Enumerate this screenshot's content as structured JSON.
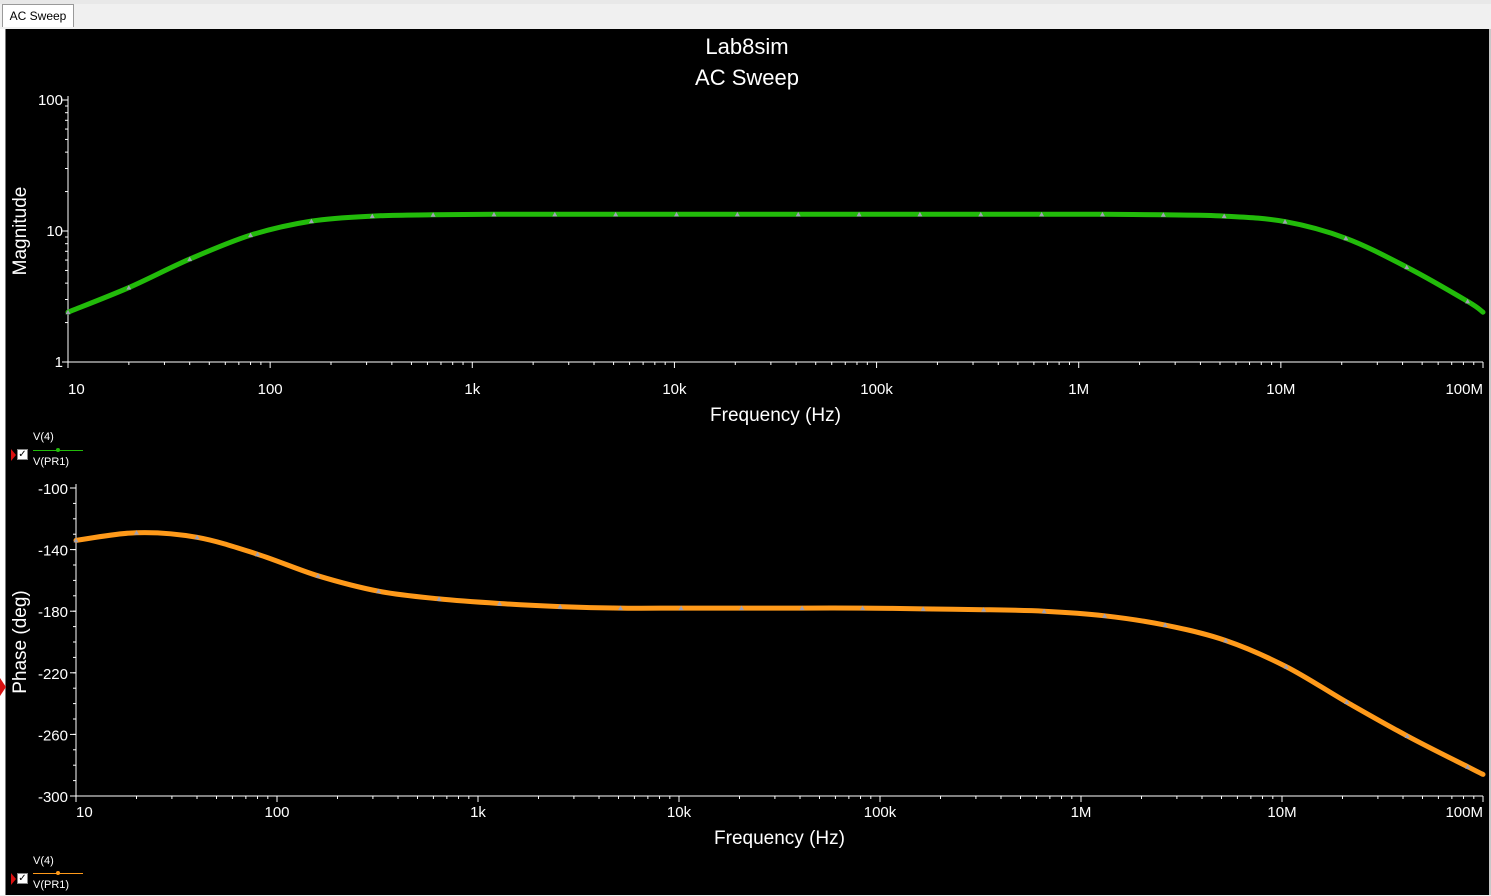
{
  "tab": {
    "label": "AC Sweep"
  },
  "colors": {
    "magnitude": "#22bb0a",
    "phase": "#ff9a1a",
    "background": "#000000",
    "text": "#ffffff",
    "marker": "#a0a0b4"
  },
  "legend": {
    "magnitude": {
      "label_top": "V(4)",
      "label_bottom": "V(PR1)",
      "checked": "✓"
    },
    "phase": {
      "label_top": "V(4)",
      "label_bottom": "V(PR1)",
      "checked": "✓"
    }
  },
  "chart_data": [
    {
      "type": "line",
      "title": "Lab8sim",
      "subtitle": "AC Sweep",
      "xlabel": "Frequency (Hz)",
      "ylabel": "Magnitude",
      "xscale": "log",
      "yscale": "log",
      "xlim": [
        10,
        100000000
      ],
      "ylim": [
        1,
        100
      ],
      "x_ticks": [
        "10",
        "100",
        "1k",
        "10k",
        "100k",
        "1M",
        "10M",
        "100M"
      ],
      "y_ticks": [
        "1",
        "10",
        "100"
      ],
      "series": [
        {
          "name": "V(4)/V(PR1)",
          "x": [
            10,
            20,
            40,
            80,
            160,
            320,
            640,
            1280,
            2560,
            5120,
            10240,
            20480,
            40960,
            81920,
            163840,
            327680,
            655360,
            1310720,
            2621440,
            5242880,
            10485760,
            20971520,
            41943040,
            83886080,
            100000000
          ],
          "y": [
            2.4,
            3.7,
            6.1,
            9.3,
            11.9,
            13.0,
            13.3,
            13.4,
            13.4,
            13.4,
            13.4,
            13.4,
            13.4,
            13.4,
            13.4,
            13.4,
            13.4,
            13.4,
            13.3,
            13.0,
            11.8,
            8.8,
            5.3,
            2.9,
            2.4
          ]
        }
      ]
    },
    {
      "type": "line",
      "xlabel": "Frequency (Hz)",
      "ylabel": "Phase (deg)",
      "xscale": "log",
      "xlim": [
        10,
        100000000
      ],
      "ylim": [
        -300,
        -100
      ],
      "x_ticks": [
        "10",
        "100",
        "1k",
        "10k",
        "100k",
        "1M",
        "10M",
        "100M"
      ],
      "y_ticks": [
        "-100",
        "-140",
        "-180",
        "-220",
        "-260",
        "-300"
      ],
      "series": [
        {
          "name": "V(4)/V(PR1)",
          "x": [
            10,
            20,
            40,
            80,
            160,
            320,
            640,
            1280,
            2560,
            5120,
            10240,
            20480,
            40960,
            81920,
            163840,
            327680,
            655360,
            1310720,
            2621440,
            5242880,
            10485760,
            20971520,
            41943040,
            83886080,
            100000000
          ],
          "y": [
            -134,
            -129,
            -132,
            -143,
            -157,
            -167,
            -172,
            -175,
            -177,
            -178,
            -178,
            -178,
            -178,
            -178,
            -178.5,
            -179,
            -180,
            -183,
            -189,
            -199,
            -216,
            -239,
            -261,
            -281,
            -286
          ]
        }
      ]
    }
  ]
}
